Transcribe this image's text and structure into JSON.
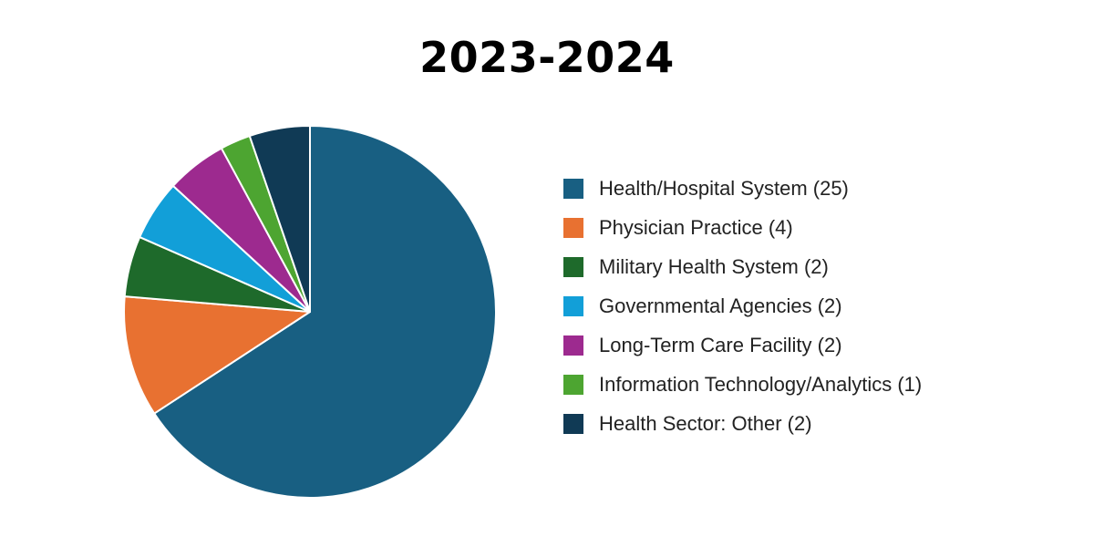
{
  "chart_data": {
    "type": "pie",
    "title": "2023-2024",
    "slices": [
      {
        "label": "Health/Hospital System (25)",
        "value": 25,
        "color": "#185f82"
      },
      {
        "label": "Physician Practice (4)",
        "value": 4,
        "color": "#e87131"
      },
      {
        "label": "Military Health System (2)",
        "value": 2,
        "color": "#1e6a2b"
      },
      {
        "label": "Governmental Agencies (2)",
        "value": 2,
        "color": "#129fd8"
      },
      {
        "label": "Long-Term Care Facility (2)",
        "value": 2,
        "color": "#9d2a8f"
      },
      {
        "label": "Information Technology/Analytics (1)",
        "value": 1,
        "color": "#4da531"
      },
      {
        "label": "Health Sector: Other (2)",
        "value": 2,
        "color": "#103a55"
      }
    ],
    "legend_position": "right"
  }
}
